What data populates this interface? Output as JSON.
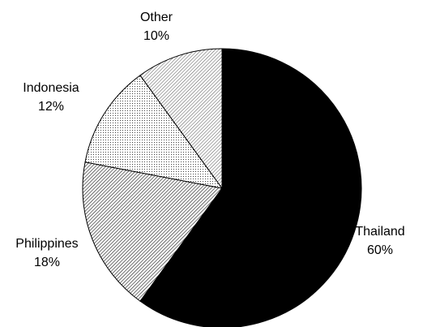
{
  "chart_data": {
    "type": "pie",
    "title": "",
    "start_angle_deg": 0,
    "direction": "clockwise",
    "slices": [
      {
        "label": "Thailand",
        "value": 60,
        "value_label": "60%",
        "pattern": "solid-black"
      },
      {
        "label": "Philippines",
        "value": 18,
        "value_label": "18%",
        "pattern": "diagonal-hatch-dense"
      },
      {
        "label": "Indonesia",
        "value": 12,
        "value_label": "12%",
        "pattern": "dots"
      },
      {
        "label": "Other",
        "value": 10,
        "value_label": "10%",
        "pattern": "diagonal-hatch-light"
      }
    ],
    "legend": "none"
  }
}
